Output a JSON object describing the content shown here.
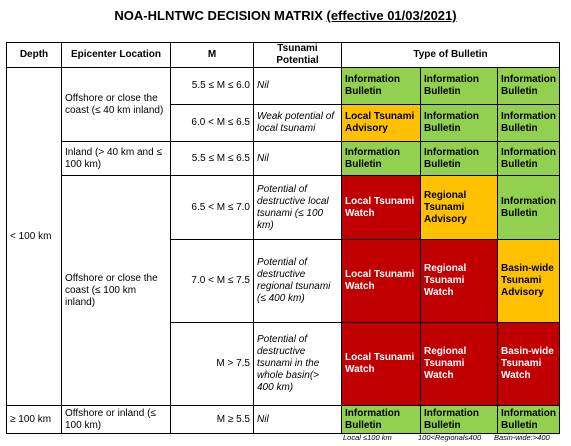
{
  "title": {
    "main": "NOA-HLNTWC DECISION MATRIX",
    "effective": "(effective 01/03/2021)"
  },
  "headers": {
    "depth": "Depth",
    "epicenter": "Epicenter Location",
    "magnitude": "M",
    "tsunami_potential": "Tsunami Potential",
    "bulletin": "Type of Bulletin"
  },
  "depth_labels": {
    "shallow": "< 100 km",
    "deep": "≥ 100 km"
  },
  "epicenters": {
    "offshore_40": "Offshore or close the coast (≤ 40 km inland)",
    "inland_40_100": "Inland (> 40 km and ≤ 100 km)",
    "offshore_100": "Offshore or close the coast (≤ 100 km inland)",
    "offshore_inland_100": "Offshore or inland (≤ 100 km)"
  },
  "rows": [
    {
      "magnitude": "5.5 ≤ M ≤ 6.0",
      "potential": "Nil",
      "bulletins": [
        {
          "label": "Information Bulletin",
          "level": "g"
        },
        {
          "label": "Information Bulletin",
          "level": "g"
        },
        {
          "label": "Information Bulletin",
          "level": "g"
        }
      ]
    },
    {
      "magnitude": "6.0 < M ≤ 6.5",
      "potential": "Weak potential of local tsunami",
      "bulletins": [
        {
          "label": "Local Tsunami Advisory",
          "level": "y"
        },
        {
          "label": "Information Bulletin",
          "level": "g"
        },
        {
          "label": "Information Bulletin",
          "level": "g"
        }
      ]
    },
    {
      "magnitude": "5.5 ≤ M ≤ 6.5",
      "potential": "Nil",
      "bulletins": [
        {
          "label": "Information Bulletin",
          "level": "g"
        },
        {
          "label": "Information Bulletin",
          "level": "g"
        },
        {
          "label": "Information Bulletin",
          "level": "g"
        }
      ]
    },
    {
      "magnitude": "6.5 < M ≤ 7.0",
      "potential": "Potential of destructive local tsunami (≤ 100 km)",
      "bulletins": [
        {
          "label": "Local Tsunami Watch",
          "level": "r"
        },
        {
          "label": "Regional Tsunami Advisory",
          "level": "y"
        },
        {
          "label": "Information Bulletin",
          "level": "g"
        }
      ]
    },
    {
      "magnitude": "7.0 < M ≤ 7.5",
      "potential": "Potential of destructive regional tsunami (≤ 400 km)",
      "bulletins": [
        {
          "label": "Local Tsunami Watch",
          "level": "r"
        },
        {
          "label": "Regional Tsunami Watch",
          "level": "r"
        },
        {
          "label": "Basin-wide Tsunami Advisory",
          "level": "y"
        }
      ]
    },
    {
      "magnitude": "M > 7.5",
      "potential": "Potential of destructive tsunami in the whole basin(> 400 km)",
      "bulletins": [
        {
          "label": "Local Tsunami Watch",
          "level": "r"
        },
        {
          "label": "Regional Tsunami Watch",
          "level": "r"
        },
        {
          "label": "Basin-wide Tsunami Watch",
          "level": "r"
        }
      ]
    },
    {
      "magnitude": "M ≥ 5.5",
      "potential": "Nil",
      "bulletins": [
        {
          "label": "Information Bulletin",
          "level": "g"
        },
        {
          "label": "Information Bulletin",
          "level": "g"
        },
        {
          "label": "Information Bulletin",
          "level": "g"
        }
      ]
    }
  ],
  "footer": {
    "local": "Local ≤100 km",
    "regional": "100<Regional≤400",
    "basin": "Basin-wide:>400"
  },
  "colors": {
    "information": "#92d050",
    "advisory": "#ffc000",
    "watch": "#c00000"
  }
}
